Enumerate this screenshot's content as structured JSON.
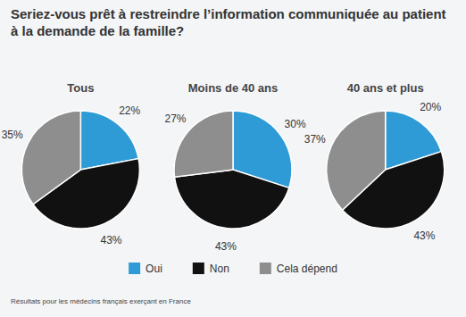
{
  "title": "Seriez-vous prêt à restreindre l’information communiquée au patient à la demande de la famille?",
  "note": "Résultats pour les médecins français exerçant en France",
  "chart_data": [
    {
      "type": "pie",
      "title": "Tous",
      "categories": [
        "Oui",
        "Non",
        "Cela dépend"
      ],
      "values": [
        22,
        43,
        35
      ],
      "value_labels": [
        "22%",
        "43%",
        "35%"
      ],
      "colors": [
        "#2e9bd6",
        "#111111",
        "#8e8e8e"
      ],
      "data_labels": true,
      "legend": "bottom"
    },
    {
      "type": "pie",
      "title": "Moins de 40 ans",
      "categories": [
        "Oui",
        "Non",
        "Cela dépend"
      ],
      "values": [
        30,
        43,
        27
      ],
      "value_labels": [
        "30%",
        "43%",
        "27%"
      ],
      "colors": [
        "#2e9bd6",
        "#111111",
        "#8e8e8e"
      ],
      "data_labels": true
    },
    {
      "type": "pie",
      "title": "40 ans et plus",
      "categories": [
        "Oui",
        "Non",
        "Cela dépend"
      ],
      "values": [
        20,
        43,
        37
      ],
      "value_labels": [
        "20%",
        "43%",
        "37%"
      ],
      "colors": [
        "#2e9bd6",
        "#111111",
        "#8e8e8e"
      ],
      "data_labels": true
    }
  ]
}
